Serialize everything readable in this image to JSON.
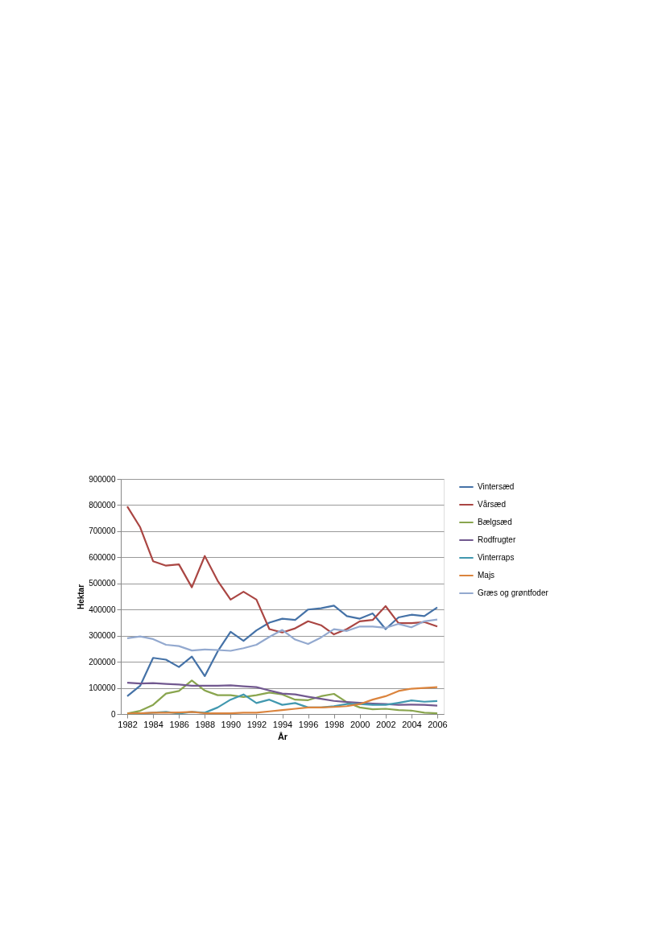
{
  "chart_data": {
    "type": "line",
    "xlabel": "År",
    "ylabel": "Hektar",
    "x": [
      1982,
      1983,
      1984,
      1985,
      1986,
      1987,
      1988,
      1989,
      1990,
      1991,
      1992,
      1993,
      1994,
      1995,
      1996,
      1997,
      1998,
      1999,
      2000,
      2001,
      2002,
      2003,
      2004,
      2005,
      2006
    ],
    "xlim": [
      1981.5,
      2006.5
    ],
    "xticks": [
      1982,
      1984,
      1986,
      1988,
      1990,
      1992,
      1994,
      1996,
      1998,
      2000,
      2002,
      2004,
      2006
    ],
    "ylim": [
      0,
      900000
    ],
    "yticks": [
      0,
      100000,
      200000,
      300000,
      400000,
      500000,
      600000,
      700000,
      800000,
      900000
    ],
    "grid": "y",
    "legend": "right",
    "marker": "none",
    "line_style": "solid",
    "series": [
      {
        "name": "Vintersæd",
        "color": "#4572a7",
        "values": [
          68000,
          108000,
          215000,
          208000,
          180000,
          220000,
          145000,
          240000,
          315000,
          280000,
          320000,
          350000,
          365000,
          360000,
          400000,
          405000,
          415000,
          375000,
          365000,
          385000,
          325000,
          370000,
          380000,
          375000,
          408000
        ]
      },
      {
        "name": "Vårsæd",
        "color": "#aa4643",
        "values": [
          795000,
          715000,
          585000,
          568000,
          573000,
          485000,
          605000,
          510000,
          438000,
          468000,
          438000,
          325000,
          312000,
          328000,
          355000,
          340000,
          305000,
          325000,
          355000,
          360000,
          413000,
          348000,
          348000,
          352000,
          335000
        ]
      },
      {
        "name": "Bælgsæd",
        "color": "#89a54e",
        "values": [
          2000,
          12000,
          35000,
          78000,
          88000,
          128000,
          90000,
          72000,
          72000,
          65000,
          72000,
          82000,
          75000,
          55000,
          53000,
          68000,
          77000,
          45000,
          25000,
          18000,
          20000,
          15000,
          13000,
          5000,
          3000
        ]
      },
      {
        "name": "Rodfrugter",
        "color": "#71588f",
        "values": [
          120000,
          117000,
          118000,
          115000,
          113000,
          108000,
          108000,
          108000,
          110000,
          106000,
          103000,
          90000,
          78000,
          75000,
          66000,
          58000,
          50000,
          46000,
          43000,
          40000,
          38000,
          35000,
          36000,
          35000,
          32000
        ]
      },
      {
        "name": "Vinterraps",
        "color": "#4198af",
        "values": [
          0,
          2000,
          5000,
          8000,
          2000,
          8000,
          5000,
          25000,
          55000,
          75000,
          42000,
          55000,
          35000,
          42000,
          25000,
          25000,
          30000,
          38000,
          38000,
          35000,
          35000,
          43000,
          52000,
          47000,
          50000
        ]
      },
      {
        "name": "Majs",
        "color": "#db843d",
        "values": [
          2000,
          3000,
          5000,
          5000,
          6000,
          8000,
          3000,
          3000,
          3000,
          5000,
          5000,
          10000,
          15000,
          20000,
          25000,
          25000,
          27000,
          30000,
          38000,
          55000,
          68000,
          88000,
          97000,
          100000,
          103000
        ]
      },
      {
        "name": "Græs og grøntfoder",
        "color": "#93a9cf",
        "values": [
          290000,
          297000,
          287000,
          265000,
          260000,
          243000,
          247000,
          245000,
          242000,
          252000,
          265000,
          295000,
          322000,
          285000,
          268000,
          293000,
          325000,
          318000,
          335000,
          335000,
          330000,
          345000,
          332000,
          355000,
          362000
        ]
      }
    ]
  }
}
